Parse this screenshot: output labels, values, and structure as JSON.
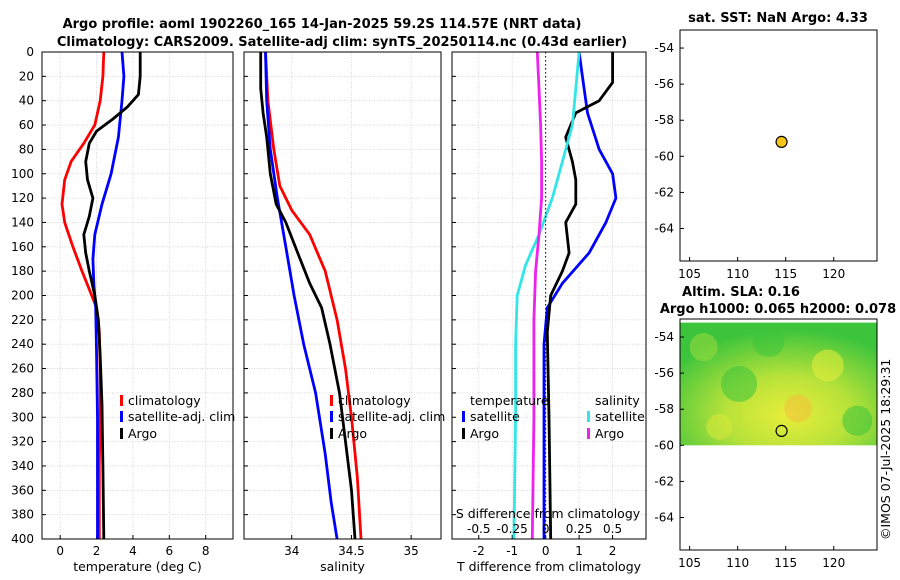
{
  "figure": {
    "title_line1": "Argo profile: aoml 1902260_165 14-Jan-2025 59.2S 114.57E (NRT data)",
    "title_line2": "Climatology: CARS2009. Satellite-adj clim: synTS_20250114.nc (0.43d earlier)",
    "watermark": "©IMOS 07-Jul-2025 18:29:31"
  },
  "colors": {
    "climatology": "#ff0000",
    "satellite": "#0000ff",
    "argo": "#000000",
    "cyan": "#33e5e5",
    "magenta": "#ee22ee",
    "grid": "#cfcfcf",
    "argo_marker": "#f5c518",
    "sla_green": "#3cc43c",
    "sla_yellow": "#e9ee3a"
  },
  "chart_data": [
    {
      "type": "line",
      "title": "",
      "xlabel": "temperature (deg C)",
      "ylabel": "",
      "xlim": [
        -1,
        9.5
      ],
      "ylim": [
        400,
        0
      ],
      "xticks": [
        0,
        2,
        4,
        6,
        8
      ],
      "xtick_labels": [
        "0",
        "2",
        "4",
        "6",
        "8"
      ],
      "yticks": [
        0,
        20,
        40,
        60,
        80,
        100,
        120,
        140,
        160,
        180,
        200,
        220,
        240,
        260,
        280,
        300,
        320,
        340,
        360,
        380,
        400
      ],
      "ytick_labels": [
        "0",
        "20",
        "40",
        "60",
        "80",
        "100",
        "120",
        "140",
        "160",
        "180",
        "200",
        "220",
        "240",
        "260",
        "280",
        "300",
        "320",
        "340",
        "360",
        "380",
        "400"
      ],
      "legend": [
        {
          "label": "climatology",
          "color_key": "climatology"
        },
        {
          "label": "satellite-adj. clim",
          "color_key": "satellite"
        },
        {
          "label": "Argo",
          "color_key": "argo"
        }
      ],
      "series": [
        {
          "name": "climatology",
          "color_key": "climatology",
          "points": [
            [
              2.4,
              0
            ],
            [
              2.35,
              20
            ],
            [
              2.2,
              40
            ],
            [
              1.9,
              60
            ],
            [
              1.3,
              75
            ],
            [
              0.6,
              90
            ],
            [
              0.25,
              105
            ],
            [
              0.1,
              125
            ],
            [
              0.25,
              140
            ],
            [
              0.7,
              160
            ],
            [
              1.2,
              180
            ],
            [
              1.6,
              195
            ],
            [
              2.0,
              210
            ],
            [
              2.15,
              230
            ],
            [
              2.2,
              260
            ],
            [
              2.2,
              300
            ],
            [
              2.15,
              340
            ],
            [
              2.15,
              400
            ]
          ]
        },
        {
          "name": "satellite-adj. clim",
          "color_key": "satellite",
          "points": [
            [
              3.4,
              0
            ],
            [
              3.5,
              20
            ],
            [
              3.4,
              40
            ],
            [
              3.2,
              70
            ],
            [
              2.8,
              100
            ],
            [
              2.3,
              125
            ],
            [
              1.9,
              150
            ],
            [
              1.8,
              170
            ],
            [
              1.85,
              190
            ],
            [
              1.95,
              210
            ],
            [
              2.0,
              250
            ],
            [
              2.05,
              300
            ],
            [
              2.05,
              400
            ]
          ]
        },
        {
          "name": "Argo",
          "color_key": "argo",
          "points": [
            [
              4.4,
              0
            ],
            [
              4.4,
              20
            ],
            [
              4.3,
              35
            ],
            [
              3.7,
              45
            ],
            [
              2.9,
              55
            ],
            [
              2.0,
              65
            ],
            [
              1.6,
              75
            ],
            [
              1.4,
              90
            ],
            [
              1.5,
              105
            ],
            [
              1.8,
              120
            ],
            [
              1.6,
              135
            ],
            [
              1.3,
              150
            ],
            [
              1.4,
              165
            ],
            [
              1.6,
              180
            ],
            [
              1.9,
              200
            ],
            [
              2.1,
              220
            ],
            [
              2.2,
              250
            ],
            [
              2.3,
              290
            ],
            [
              2.35,
              340
            ],
            [
              2.4,
              400
            ]
          ]
        }
      ]
    },
    {
      "type": "line",
      "title": "",
      "xlabel": "salinity",
      "ylabel": "",
      "xlim": [
        33.6,
        35.25
      ],
      "ylim": [
        400,
        0
      ],
      "xticks": [
        34,
        34.5,
        35
      ],
      "xtick_labels": [
        "34",
        "34.5",
        "35"
      ],
      "legend": [
        {
          "label": "climatology",
          "color_key": "climatology"
        },
        {
          "label": "satellite-adj. clim",
          "color_key": "satellite"
        },
        {
          "label": "Argo",
          "color_key": "argo"
        }
      ],
      "series": [
        {
          "name": "climatology",
          "color_key": "climatology",
          "points": [
            [
              33.78,
              0
            ],
            [
              33.8,
              40
            ],
            [
              33.85,
              80
            ],
            [
              33.9,
              110
            ],
            [
              34.0,
              130
            ],
            [
              34.15,
              150
            ],
            [
              34.28,
              180
            ],
            [
              34.38,
              220
            ],
            [
              34.45,
              260
            ],
            [
              34.5,
              300
            ],
            [
              34.55,
              350
            ],
            [
              34.58,
              400
            ]
          ]
        },
        {
          "name": "satellite-adj. clim",
          "color_key": "satellite",
          "points": [
            [
              33.78,
              0
            ],
            [
              33.79,
              40
            ],
            [
              33.82,
              80
            ],
            [
              33.88,
              120
            ],
            [
              33.95,
              160
            ],
            [
              34.02,
              200
            ],
            [
              34.1,
              240
            ],
            [
              34.2,
              280
            ],
            [
              34.28,
              330
            ],
            [
              34.33,
              370
            ],
            [
              34.38,
              400
            ]
          ]
        },
        {
          "name": "Argo",
          "color_key": "argo",
          "points": [
            [
              33.74,
              0
            ],
            [
              33.74,
              30
            ],
            [
              33.76,
              50
            ],
            [
              33.79,
              70
            ],
            [
              33.82,
              100
            ],
            [
              33.87,
              125
            ],
            [
              33.95,
              140
            ],
            [
              34.05,
              165
            ],
            [
              34.15,
              190
            ],
            [
              34.25,
              210
            ],
            [
              34.32,
              240
            ],
            [
              34.4,
              280
            ],
            [
              34.45,
              320
            ],
            [
              34.5,
              360
            ],
            [
              34.53,
              400
            ]
          ]
        }
      ]
    },
    {
      "type": "line",
      "title": "",
      "xlabel": "T difference from climatology",
      "top_xlabel": "S difference from climatology",
      "xlim": [
        -2.8,
        3.0
      ],
      "ylim": [
        400,
        0
      ],
      "xticks": [
        -2,
        -1,
        0,
        1,
        2
      ],
      "xtick_labels": [
        "-2",
        "-1",
        "0",
        "1",
        "2"
      ],
      "top_ticks": [
        "-0.5",
        "-0.25",
        "0",
        "0.25",
        "0.5"
      ],
      "legend_temperature_header": "temperature",
      "legend_salinity_header": "salinity",
      "legend": [
        {
          "label": "satellite",
          "color_key": "satellite"
        },
        {
          "label": "Argo",
          "color_key": "argo"
        },
        {
          "label": "satellite",
          "color_key": "cyan"
        },
        {
          "label": "Argo",
          "color_key": "magenta"
        }
      ],
      "series": [
        {
          "name": "T satellite",
          "color_key": "satellite",
          "points": [
            [
              1.0,
              0
            ],
            [
              1.1,
              20
            ],
            [
              1.25,
              50
            ],
            [
              1.6,
              80
            ],
            [
              2.0,
              100
            ],
            [
              2.1,
              120
            ],
            [
              1.8,
              140
            ],
            [
              1.3,
              165
            ],
            [
              0.5,
              190
            ],
            [
              0.05,
              210
            ],
            [
              -0.05,
              240
            ],
            [
              -0.05,
              400
            ]
          ]
        },
        {
          "name": "T Argo",
          "color_key": "argo",
          "points": [
            [
              2.0,
              0
            ],
            [
              2.0,
              25
            ],
            [
              1.6,
              40
            ],
            [
              0.9,
              50
            ],
            [
              0.6,
              70
            ],
            [
              0.8,
              90
            ],
            [
              0.9,
              105
            ],
            [
              0.9,
              125
            ],
            [
              0.6,
              140
            ],
            [
              0.7,
              165
            ],
            [
              0.5,
              180
            ],
            [
              0.15,
              200
            ],
            [
              0.05,
              230
            ],
            [
              0.1,
              300
            ],
            [
              0.15,
              400
            ]
          ]
        },
        {
          "name": "S satellite",
          "color_key": "cyan",
          "points": [
            [
              1.0,
              0
            ],
            [
              0.9,
              30
            ],
            [
              0.8,
              60
            ],
            [
              0.5,
              90
            ],
            [
              0.2,
              120
            ],
            [
              -0.2,
              150
            ],
            [
              -0.6,
              175
            ],
            [
              -0.85,
              200
            ],
            [
              -0.9,
              240
            ],
            [
              -0.9,
              300
            ],
            [
              -0.95,
              400
            ]
          ]
        },
        {
          "name": "S Argo",
          "color_key": "magenta",
          "points": [
            [
              -0.25,
              0
            ],
            [
              -0.2,
              30
            ],
            [
              -0.15,
              60
            ],
            [
              -0.12,
              90
            ],
            [
              -0.12,
              120
            ],
            [
              -0.2,
              150
            ],
            [
              -0.3,
              180
            ],
            [
              -0.35,
              220
            ],
            [
              -0.35,
              300
            ],
            [
              -0.4,
              400
            ]
          ]
        }
      ]
    },
    {
      "type": "scatter",
      "title": "sat. SST: NaN Argo: 4.33",
      "xlim": [
        104,
        124.5
      ],
      "ylim": [
        -65.8,
        -53
      ],
      "xticks": [
        105,
        110,
        115,
        120
      ],
      "xtick_labels": [
        "105",
        "110",
        "115",
        "120"
      ],
      "yticks": [
        -54,
        -56,
        -58,
        -60,
        -62,
        -64
      ],
      "ytick_labels": [
        "-54",
        "-56",
        "-58",
        "-60",
        "-62",
        "-64"
      ],
      "points": [
        {
          "lon": 114.57,
          "lat": -59.2
        }
      ]
    },
    {
      "type": "heatmap",
      "title_line1": "Altim. SLA: 0.16",
      "title_line2": "Argo h1000: 0.065 h2000: 0.078",
      "xlim": [
        104,
        124.5
      ],
      "ylim": [
        -65.8,
        -53
      ],
      "xticks": [
        105,
        110,
        115,
        120
      ],
      "xtick_labels": [
        "105",
        "110",
        "115",
        "120"
      ],
      "yticks": [
        -54,
        -56,
        -58,
        -60,
        -62,
        -64
      ],
      "ytick_labels": [
        "-54",
        "-56",
        "-58",
        "-60",
        "-62",
        "-64"
      ],
      "field_lat_range": [
        -60,
        -53.2
      ],
      "points": [
        {
          "lon": 114.57,
          "lat": -59.2
        }
      ]
    }
  ]
}
